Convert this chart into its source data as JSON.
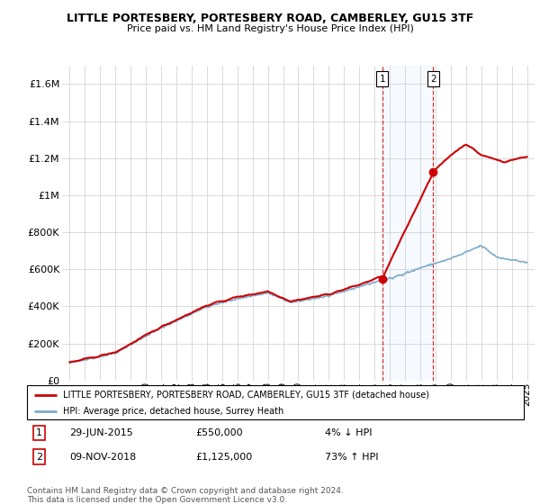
{
  "title": "LITTLE PORTESBERY, PORTESBERY ROAD, CAMBERLEY, GU15 3TF",
  "subtitle": "Price paid vs. HM Land Registry's House Price Index (HPI)",
  "legend_line1": "LITTLE PORTESBERY, PORTESBERY ROAD, CAMBERLEY, GU15 3TF (detached house)",
  "legend_line2": "HPI: Average price, detached house, Surrey Heath",
  "sale1_date": "29-JUN-2015",
  "sale1_price": 550000,
  "sale1_pct": "4% ↓ HPI",
  "sale2_date": "09-NOV-2018",
  "sale2_price": 1125000,
  "sale2_pct": "73% ↑ HPI",
  "footer": "Contains HM Land Registry data © Crown copyright and database right 2024.\nThis data is licensed under the Open Government Licence v3.0.",
  "red_color": "#cc0000",
  "blue_color": "#7aaacc",
  "shade_color": "#ddeeff",
  "ylim": [
    0,
    1700000
  ],
  "yticks": [
    0,
    200000,
    400000,
    600000,
    800000,
    1000000,
    1200000,
    1400000,
    1600000
  ],
  "ytick_labels": [
    "£0",
    "£200K",
    "£400K",
    "£600K",
    "£800K",
    "£1M",
    "£1.2M",
    "£1.4M",
    "£1.6M"
  ],
  "sale1_year": 2015.5,
  "sale2_year": 2018.85,
  "xmin": 1994.5,
  "xmax": 2025.5
}
